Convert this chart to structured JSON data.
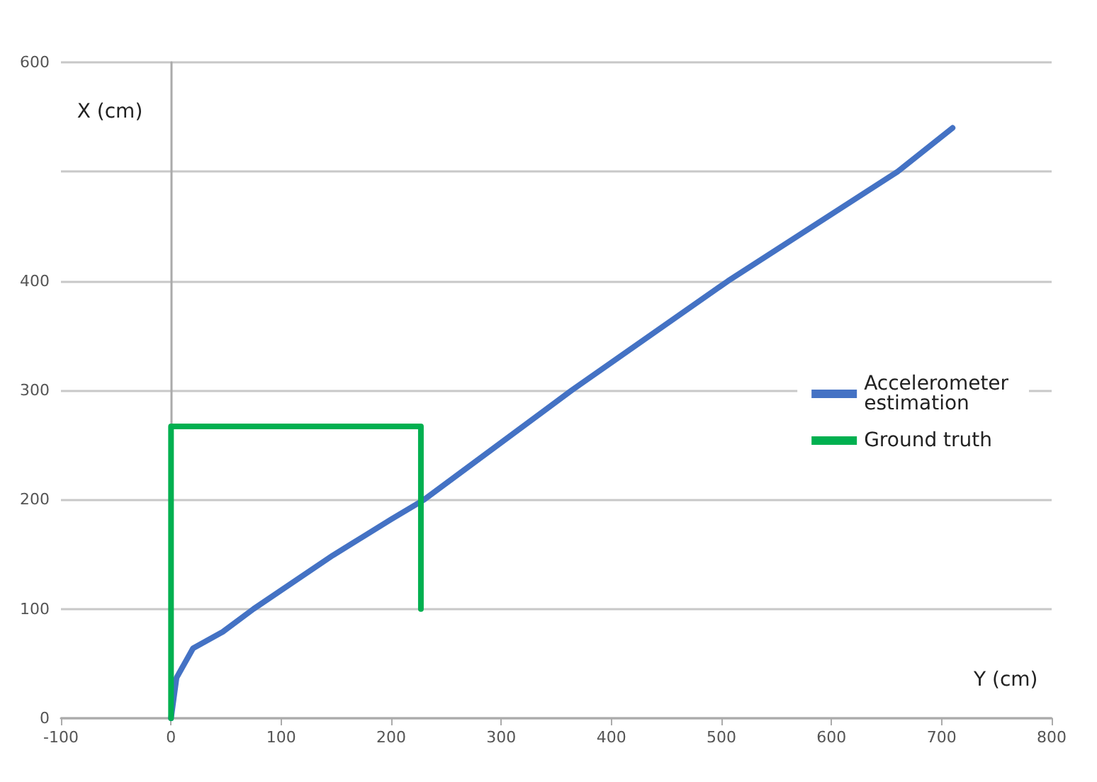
{
  "chart_data": {
    "type": "line",
    "xlabel": "Y (cm)",
    "ylabel": "X (cm)",
    "xlim": [
      -100,
      800
    ],
    "xticks": [
      -100,
      0,
      100,
      200,
      300,
      400,
      500,
      600,
      700,
      800
    ],
    "ylim": [
      0,
      600
    ],
    "yticks": [
      0,
      100,
      200,
      300,
      400,
      {
        "value": 500,
        "label": null
      },
      600
    ],
    "series": [
      {
        "name": "Accelerometer estimation",
        "color": "#4472c4",
        "x": [
          0,
          5,
          20,
          47,
          75,
          147,
          200,
          230,
          364,
          506,
          660,
          710
        ],
        "values": [
          0,
          37,
          64,
          79,
          100,
          149,
          182,
          200,
          300,
          400,
          500,
          540
        ]
      },
      {
        "name": "Ground truth",
        "color": "#00b050",
        "x": [
          0,
          0,
          227,
          227
        ],
        "values": [
          0,
          267,
          267,
          100
        ]
      }
    ],
    "grid": "y",
    "legend": "right",
    "marker": "none",
    "line_style": "solid"
  }
}
